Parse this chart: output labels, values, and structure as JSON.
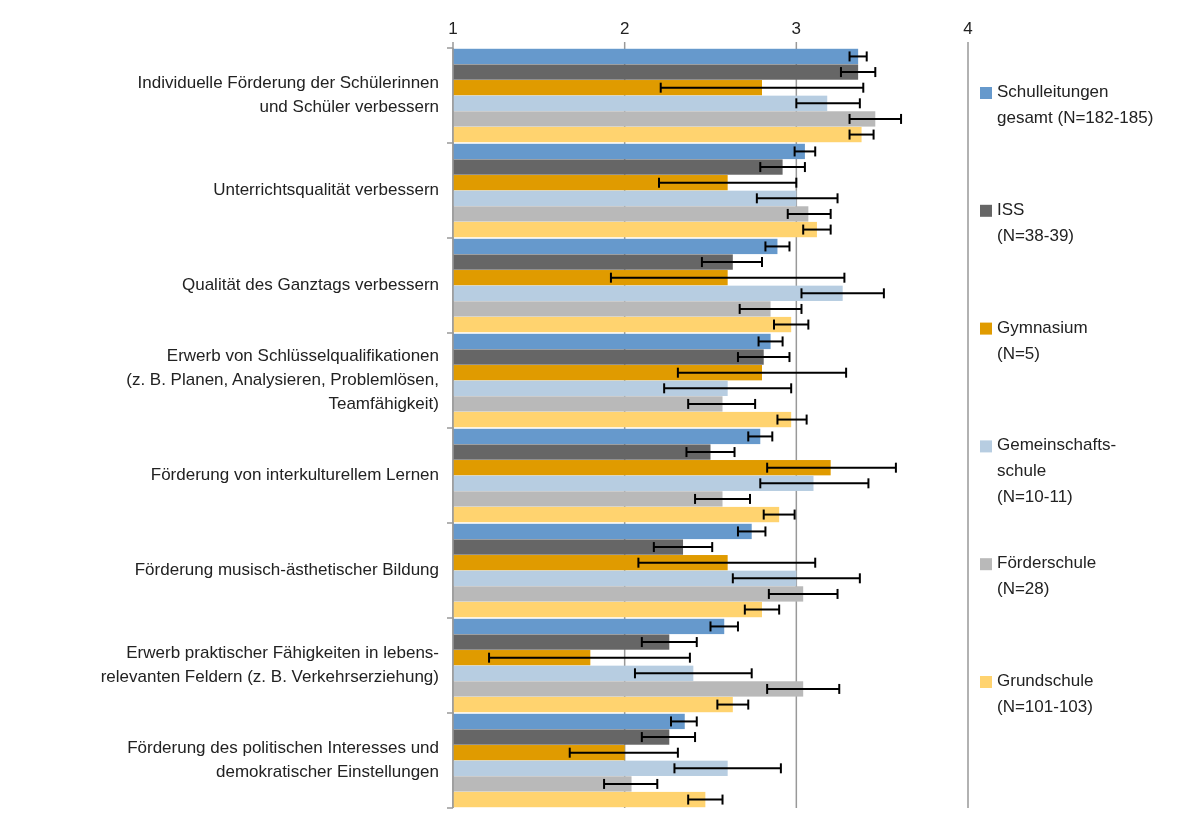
{
  "chart_data": {
    "type": "bar",
    "orientation": "horizontal",
    "categories": [
      "Individuelle Förderung der Schülerinnen\nund Schüler verbessern",
      "Unterrichtsqualität verbessern",
      "Qualität des Ganztags verbessern",
      "Erwerb von Schlüsselqualifikationen\n(z. B. Planen, Analysieren, Problemlösen,\nTeamfähigkeit)",
      "Förderung von interkulturellem Lernen",
      "Förderung musisch-ästhetischer Bildung",
      "Erwerb praktischer Fähigkeiten in lebens-\nrelevanten Feldern (z. B. Verkehrserziehung)",
      "Förderung des politischen Interesses und\ndemokratischer Einstellungen"
    ],
    "xlim": [
      1,
      4
    ],
    "xticks": [
      1,
      2,
      3,
      4
    ],
    "grid": "x",
    "legend": "right",
    "series": [
      {
        "name": "Schulleitungen\ngesamt (N=182-185)",
        "color": "#6699cc",
        "values": [
          3.36,
          3.05,
          2.89,
          2.85,
          2.79,
          2.74,
          2.58,
          2.35
        ],
        "errors": [
          [
            3.31,
            3.41
          ],
          [
            2.99,
            3.11
          ],
          [
            2.82,
            2.96
          ],
          [
            2.78,
            2.92
          ],
          [
            2.72,
            2.86
          ],
          [
            2.66,
            2.82
          ],
          [
            2.5,
            2.66
          ],
          [
            2.27,
            2.42
          ]
        ]
      },
      {
        "name": "ISS\n(N=38-39)",
        "color": "#666666",
        "values": [
          3.36,
          2.92,
          2.63,
          2.81,
          2.5,
          2.34,
          2.26,
          2.26
        ],
        "errors": [
          [
            3.26,
            3.46
          ],
          [
            2.79,
            3.05
          ],
          [
            2.45,
            2.8
          ],
          [
            2.66,
            2.96
          ],
          [
            2.36,
            2.64
          ],
          [
            2.17,
            2.51
          ],
          [
            2.1,
            2.42
          ],
          [
            2.1,
            2.41
          ]
        ]
      },
      {
        "name": "Gymnasium\n(N=5)",
        "color": "#e09b00",
        "values": [
          2.8,
          2.6,
          2.6,
          2.8,
          3.2,
          2.6,
          1.8,
          2.0
        ],
        "errors": [
          [
            2.21,
            3.39
          ],
          [
            2.2,
            3.0
          ],
          [
            1.92,
            3.28
          ],
          [
            2.31,
            3.29
          ],
          [
            2.83,
            3.58
          ],
          [
            2.08,
            3.11
          ],
          [
            1.21,
            2.38
          ],
          [
            1.68,
            2.31
          ]
        ]
      },
      {
        "name": "Gemeinschafts-\nschule\n(N=10-11)",
        "color": "#b7cde1",
        "values": [
          3.18,
          3.0,
          3.27,
          2.6,
          3.1,
          3.0,
          2.4,
          2.6
        ],
        "errors": [
          [
            3.0,
            3.37
          ],
          [
            2.77,
            3.24
          ],
          [
            3.03,
            3.51
          ],
          [
            2.23,
            2.97
          ],
          [
            2.79,
            3.42
          ],
          [
            2.63,
            3.37
          ],
          [
            2.06,
            2.74
          ],
          [
            2.29,
            2.91
          ]
        ]
      },
      {
        "name": "Förderschule\n(N=28)",
        "color": "#b9b9b9",
        "values": [
          3.46,
          3.07,
          2.85,
          2.57,
          2.57,
          3.04,
          3.04,
          2.04
        ],
        "errors": [
          [
            3.31,
            3.61
          ],
          [
            2.95,
            3.2
          ],
          [
            2.67,
            3.03
          ],
          [
            2.37,
            2.76
          ],
          [
            2.41,
            2.73
          ],
          [
            2.84,
            3.24
          ],
          [
            2.83,
            3.25
          ],
          [
            1.88,
            2.19
          ]
        ]
      },
      {
        "name": "Grundschule\n(N=101-103)",
        "color": "#ffd36f",
        "values": [
          3.38,
          3.12,
          2.97,
          2.97,
          2.9,
          2.8,
          2.63,
          2.47
        ],
        "errors": [
          [
            3.31,
            3.45
          ],
          [
            3.04,
            3.2
          ],
          [
            2.87,
            3.07
          ],
          [
            2.89,
            3.06
          ],
          [
            2.81,
            2.99
          ],
          [
            2.7,
            2.9
          ],
          [
            2.54,
            2.72
          ],
          [
            2.37,
            2.57
          ]
        ]
      }
    ]
  }
}
